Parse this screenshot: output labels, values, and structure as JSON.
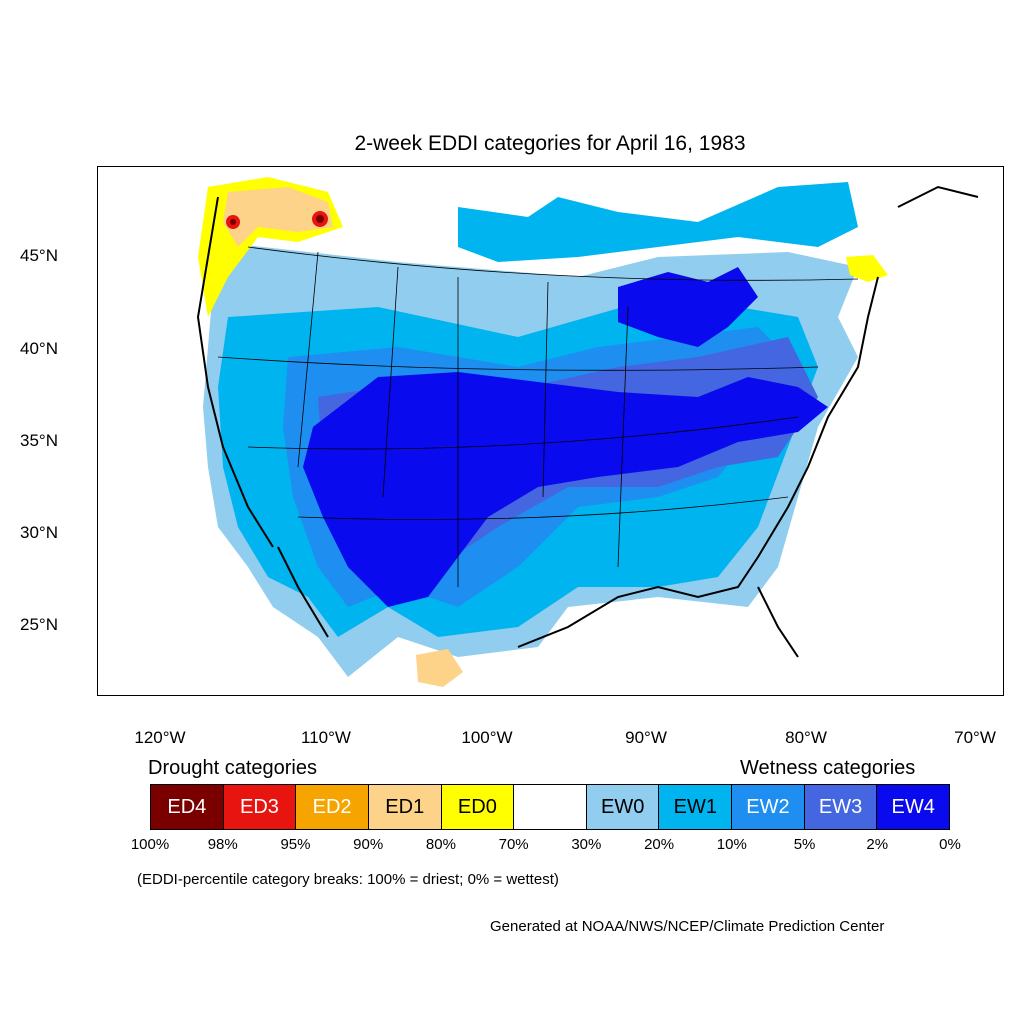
{
  "title": "2-week EDDI categories for April 16, 1983",
  "lat_labels": [
    "45°N",
    "40°N",
    "35°N",
    "30°N",
    "25°N"
  ],
  "lon_labels": [
    "120°W",
    "110°W",
    "100°W",
    "90°W",
    "80°W",
    "70°W"
  ],
  "legend": {
    "drought_heading": "Drought categories",
    "wetness_heading": "Wetness categories",
    "categories": [
      {
        "label": "ED4",
        "color": "#7a0000",
        "text_color": "#ffffff"
      },
      {
        "label": "ED3",
        "color": "#e8140f",
        "text_color": "#ffffff"
      },
      {
        "label": "ED2",
        "color": "#f5a400",
        "text_color": "#ffffff"
      },
      {
        "label": "ED1",
        "color": "#fdd38a",
        "text_color": "#000000"
      },
      {
        "label": "ED0",
        "color": "#ffff00",
        "text_color": "#000000"
      },
      {
        "label": "",
        "color": "#ffffff",
        "text_color": "#000000"
      },
      {
        "label": "EW0",
        "color": "#91cdee",
        "text_color": "#000000"
      },
      {
        "label": "EW1",
        "color": "#00b4f0",
        "text_color": "#000000"
      },
      {
        "label": "EW2",
        "color": "#1e8ef0",
        "text_color": "#ffffff"
      },
      {
        "label": "EW3",
        "color": "#4466e0",
        "text_color": "#ffffff"
      },
      {
        "label": "EW4",
        "color": "#0a0aee",
        "text_color": "#ffffff"
      }
    ],
    "breaks": [
      "100%",
      "98%",
      "95%",
      "90%",
      "80%",
      "70%",
      "30%",
      "20%",
      "10%",
      "5%",
      "2%",
      "0%"
    ]
  },
  "note": "(EDDI-percentile category breaks: 100% = driest; 0% = wettest)",
  "credit": "Generated at NOAA/NWS/NCEP/Climate Prediction Center"
}
